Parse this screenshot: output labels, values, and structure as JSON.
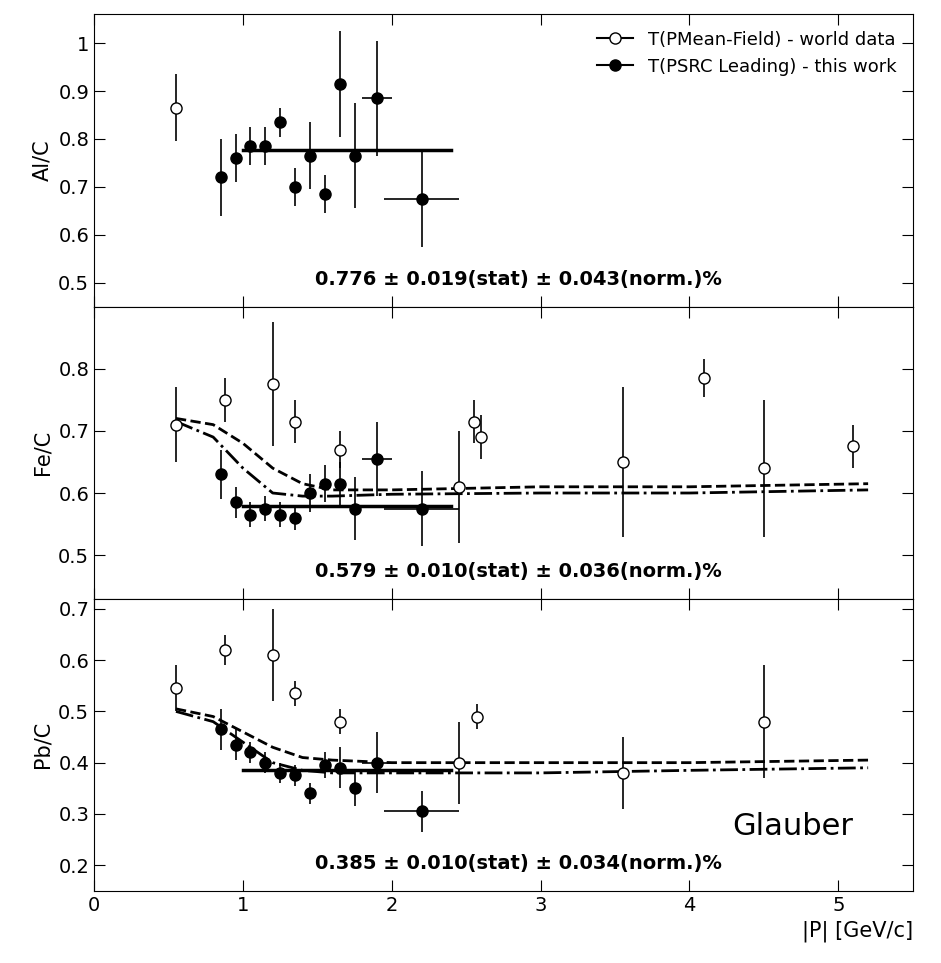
{
  "chart_data": [
    {
      "type": "scatter",
      "y_label": "Al/C",
      "xlim": [
        0,
        5.5
      ],
      "xticks": [
        0,
        1,
        2,
        3,
        4,
        5
      ],
      "ylim": [
        0.45,
        1.06
      ],
      "yticks": [
        0.5,
        0.6,
        0.7,
        0.8,
        0.9,
        1
      ],
      "tick_labels": "y",
      "legend": "upper right",
      "annotation": "0.776 ± 0.019(stat) ± 0.043(norm.)%",
      "series": [
        {
          "name": "T(PMean-Field) - world data",
          "type": "scatter",
          "marker": "open_circle",
          "color": "#000000",
          "x": [
            0.55
          ],
          "values": [
            0.865
          ],
          "y_err": [
            0.07
          ],
          "x_err": [
            0
          ]
        },
        {
          "name": "T(PSRC Leading) - this work",
          "type": "scatter",
          "marker": "circle",
          "color": "#000000",
          "x": [
            0.85,
            0.95,
            1.05,
            1.15,
            1.25,
            1.35,
            1.45,
            1.55,
            1.65,
            1.75,
            1.9,
            2.2
          ],
          "values": [
            0.72,
            0.76,
            0.785,
            0.785,
            0.835,
            0.7,
            0.765,
            0.685,
            0.915,
            0.765,
            0.885,
            0.675
          ],
          "y_err": [
            0.08,
            0.05,
            0.04,
            0.04,
            0.03,
            0.04,
            0.07,
            0.04,
            0.11,
            0.11,
            0.12,
            0.1
          ],
          "x_err": [
            0,
            0,
            0,
            0,
            0,
            0,
            0,
            0,
            0,
            0,
            0.1,
            0.25
          ]
        },
        {
          "type": "line",
          "line_style": "solid",
          "color": "#000000",
          "x": [
            1.0,
            2.4
          ],
          "values": [
            0.776,
            0.776
          ]
        }
      ]
    },
    {
      "type": "scatter",
      "y_label": "Fe/C",
      "xlim": [
        0,
        5.5
      ],
      "xticks": [
        0,
        1,
        2,
        3,
        4,
        5
      ],
      "ylim": [
        0.43,
        0.9
      ],
      "yticks": [
        0.5,
        0.6,
        0.7,
        0.8
      ],
      "tick_labels": "y",
      "annotation": "0.579 ± 0.010(stat) ± 0.036(norm.)%",
      "series": [
        {
          "type": "scatter",
          "marker": "open_circle",
          "color": "#000000",
          "x": [
            0.55,
            0.88,
            1.2,
            1.35,
            1.65,
            2.45,
            2.55,
            2.6,
            3.55,
            4.1,
            4.5,
            5.1
          ],
          "values": [
            0.71,
            0.75,
            0.775,
            0.715,
            0.67,
            0.61,
            0.715,
            0.69,
            0.65,
            0.785,
            0.64,
            0.675
          ],
          "y_err": [
            0.06,
            0.035,
            0.1,
            0.035,
            0.03,
            0.09,
            0.035,
            0.035,
            0.12,
            0.03,
            0.11,
            0.035
          ],
          "x_err": [
            0,
            0,
            0,
            0,
            0,
            0,
            0,
            0,
            0,
            0,
            0,
            0
          ]
        },
        {
          "type": "scatter",
          "marker": "circle",
          "color": "#000000",
          "x": [
            0.85,
            0.95,
            1.05,
            1.15,
            1.25,
            1.35,
            1.45,
            1.55,
            1.65,
            1.75,
            1.9,
            2.2
          ],
          "values": [
            0.63,
            0.585,
            0.565,
            0.575,
            0.565,
            0.56,
            0.6,
            0.615,
            0.615,
            0.575,
            0.655,
            0.575
          ],
          "y_err": [
            0.04,
            0.025,
            0.02,
            0.02,
            0.02,
            0.02,
            0.03,
            0.03,
            0.035,
            0.05,
            0.06,
            0.06
          ],
          "x_err": [
            0,
            0,
            0,
            0,
            0,
            0,
            0,
            0,
            0,
            0,
            0.1,
            0.25
          ]
        },
        {
          "type": "line",
          "line_style": "solid",
          "color": "#000000",
          "x": [
            1.0,
            2.4
          ],
          "values": [
            0.579,
            0.579
          ]
        },
        {
          "type": "line",
          "line_style": "dashed",
          "color": "#000000",
          "x": [
            0.55,
            0.8,
            1.0,
            1.2,
            1.4,
            1.6,
            2.0,
            3.0,
            4.0,
            5.2
          ],
          "values": [
            0.72,
            0.71,
            0.68,
            0.64,
            0.615,
            0.605,
            0.605,
            0.61,
            0.61,
            0.615
          ]
        },
        {
          "type": "line",
          "line_style": "dashdot",
          "color": "#000000",
          "x": [
            0.55,
            0.8,
            1.0,
            1.2,
            1.4,
            1.6,
            2.0,
            3.0,
            4.0,
            5.2
          ],
          "values": [
            0.715,
            0.69,
            0.64,
            0.6,
            0.595,
            0.595,
            0.598,
            0.6,
            0.6,
            0.605
          ]
        }
      ]
    },
    {
      "type": "scatter",
      "y_label": "Pb/C",
      "x_label": "|P| [GeV/c]",
      "xlim": [
        0,
        5.5
      ],
      "xticks": [
        0,
        1,
        2,
        3,
        4,
        5
      ],
      "ylim": [
        0.15,
        0.72
      ],
      "yticks": [
        0.2,
        0.3,
        0.4,
        0.5,
        0.6,
        0.7
      ],
      "annotation": "0.385 ± 0.010(stat) ± 0.034(norm.)%",
      "label": "Glauber",
      "series": [
        {
          "type": "scatter",
          "marker": "open_circle",
          "color": "#000000",
          "x": [
            0.55,
            0.88,
            1.2,
            1.35,
            1.65,
            2.45,
            2.57,
            3.55,
            4.5
          ],
          "values": [
            0.545,
            0.62,
            0.61,
            0.535,
            0.48,
            0.4,
            0.49,
            0.38,
            0.48
          ],
          "y_err": [
            0.045,
            0.03,
            0.09,
            0.025,
            0.025,
            0.08,
            0.025,
            0.07,
            0.11
          ],
          "x_err": [
            0,
            0,
            0,
            0,
            0,
            0,
            0,
            0,
            0
          ]
        },
        {
          "type": "scatter",
          "marker": "circle",
          "color": "#000000",
          "x": [
            0.85,
            0.95,
            1.05,
            1.15,
            1.25,
            1.35,
            1.45,
            1.55,
            1.65,
            1.75,
            1.9,
            2.2
          ],
          "values": [
            0.465,
            0.435,
            0.42,
            0.4,
            0.38,
            0.375,
            0.34,
            0.395,
            0.39,
            0.35,
            0.4,
            0.305
          ],
          "y_err": [
            0.04,
            0.03,
            0.02,
            0.02,
            0.02,
            0.02,
            0.02,
            0.025,
            0.04,
            0.035,
            0.06,
            0.04
          ],
          "x_err": [
            0,
            0,
            0,
            0,
            0,
            0,
            0,
            0,
            0,
            0,
            0.1,
            0.25
          ]
        },
        {
          "type": "line",
          "line_style": "solid",
          "color": "#000000",
          "x": [
            1.0,
            2.4
          ],
          "values": [
            0.385,
            0.385
          ]
        },
        {
          "type": "line",
          "line_style": "dashed",
          "color": "#000000",
          "x": [
            0.55,
            0.8,
            1.0,
            1.2,
            1.4,
            1.6,
            2.0,
            3.0,
            4.0,
            5.2
          ],
          "values": [
            0.505,
            0.49,
            0.46,
            0.43,
            0.41,
            0.405,
            0.4,
            0.4,
            0.4,
            0.405
          ]
        },
        {
          "type": "line",
          "line_style": "dashdot",
          "color": "#000000",
          "x": [
            0.55,
            0.8,
            1.0,
            1.2,
            1.4,
            1.6,
            2.0,
            3.0,
            4.0,
            5.2
          ],
          "values": [
            0.5,
            0.48,
            0.44,
            0.4,
            0.385,
            0.38,
            0.38,
            0.38,
            0.385,
            0.39
          ]
        }
      ]
    }
  ]
}
